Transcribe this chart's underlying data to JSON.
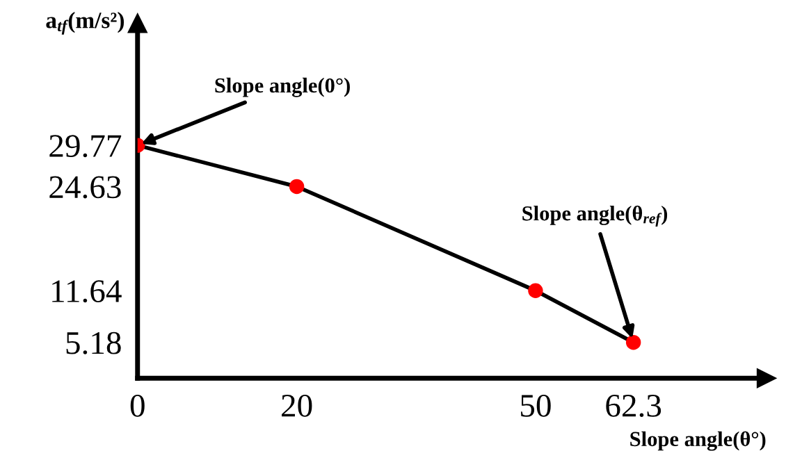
{
  "chart_data": {
    "type": "line",
    "xlabel": "Slope angle(θ°)",
    "ylabel": "a$_{tf}$(m/s²)",
    "x": [
      0,
      20,
      50,
      62.3
    ],
    "series": [
      {
        "color": "#000000",
        "colors": [
          "#ff0000",
          "#ff0000",
          "#ff0000",
          "#ff0000"
        ],
        "values": [
          29.77,
          24.63,
          11.64,
          5.18
        ]
      }
    ],
    "xlim": [
      0,
      79
    ],
    "ylim": [
      0.7,
      45
    ],
    "xticks": [
      0,
      20,
      50,
      62.3
    ],
    "yticks": [
      5.18,
      11.64,
      24.63,
      29.77
    ],
    "marker": "circle",
    "line_style": "solid",
    "grid": false,
    "legend": false,
    "annotations": [
      {
        "text": "Slope angle(0°)",
        "x": 0,
        "y": 29.77
      },
      {
        "text": "Slope angle(θ$_{ref}$)",
        "x": 62.3,
        "y": 5.18
      }
    ]
  }
}
